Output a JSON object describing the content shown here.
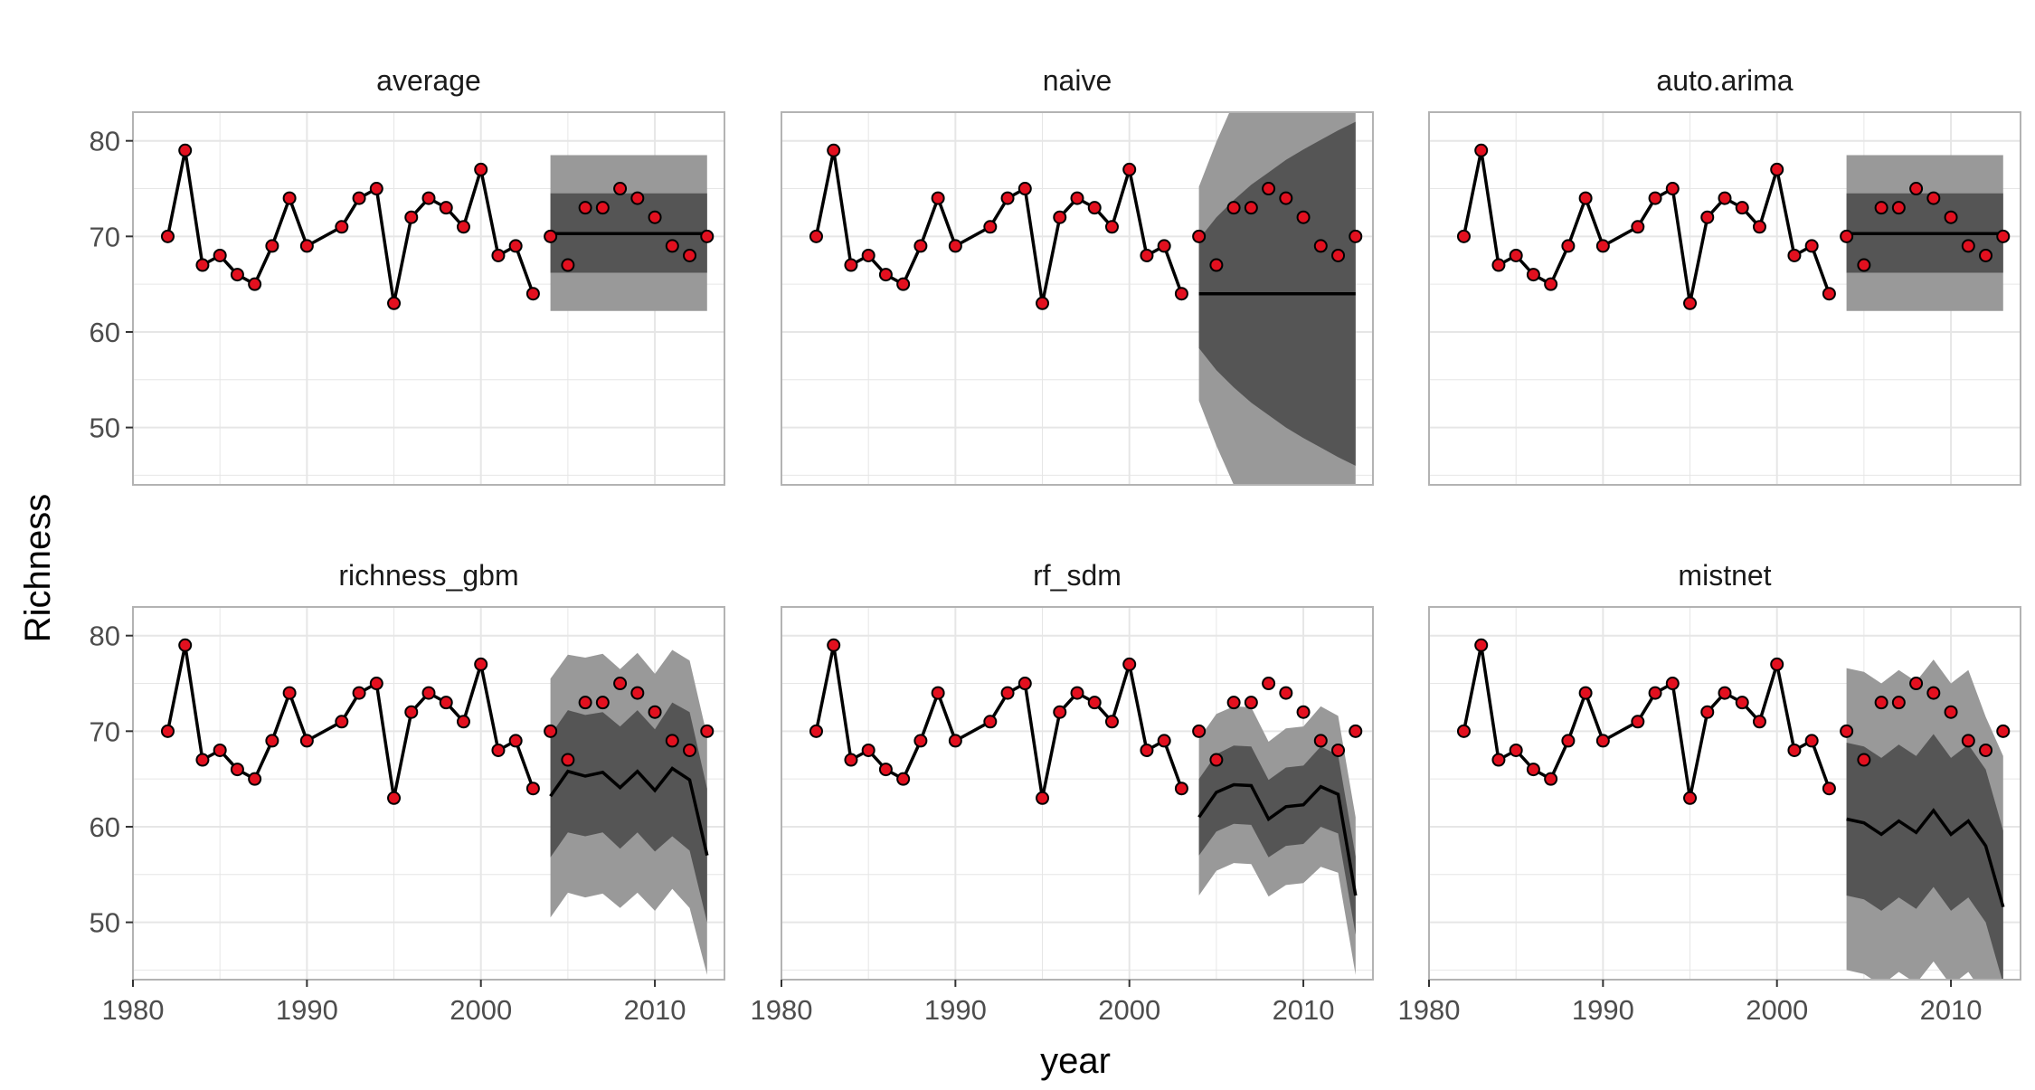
{
  "chart_data": {
    "type": "line",
    "xlabel": "year",
    "ylabel": "Richness",
    "xlim": [
      1980,
      2014
    ],
    "ylim": [
      44,
      83
    ],
    "x_ticks": [
      1980,
      1990,
      2000,
      2010
    ],
    "y_ticks": [
      50,
      60,
      70,
      80
    ],
    "grid": true,
    "layout": "2 rows x 3 columns facets",
    "colors": {
      "points": "#e3101f",
      "line": "#000000",
      "band_outer": "#999999",
      "band_inner": "#555555",
      "grid": "#e6e6e6",
      "panel_border": "#b3b3b3"
    },
    "observed": {
      "x": [
        1982,
        1983,
        1984,
        1985,
        1986,
        1987,
        1988,
        1989,
        1990,
        1992,
        1993,
        1994,
        1995,
        1996,
        1997,
        1998,
        1999,
        2000,
        2001,
        2002,
        2003,
        2004,
        2005,
        2006,
        2007,
        2008,
        2009,
        2010,
        2011,
        2012,
        2013
      ],
      "y": [
        70,
        79,
        67,
        68,
        66,
        65,
        69,
        74,
        69,
        71,
        74,
        75,
        63,
        72,
        74,
        73,
        71,
        77,
        68,
        69,
        64,
        70,
        67,
        73,
        73,
        75,
        74,
        72,
        69,
        68,
        70
      ]
    },
    "training_end_year": 2003,
    "forecast_x": [
      2004,
      2005,
      2006,
      2007,
      2008,
      2009,
      2010,
      2011,
      2012,
      2013
    ],
    "panels": [
      {
        "title": "average",
        "mean": [
          70.3,
          70.3,
          70.3,
          70.3,
          70.3,
          70.3,
          70.3,
          70.3,
          70.3,
          70.3
        ],
        "inner_lo": [
          66.2,
          66.2,
          66.2,
          66.2,
          66.2,
          66.2,
          66.2,
          66.2,
          66.2,
          66.2
        ],
        "inner_hi": [
          74.5,
          74.5,
          74.5,
          74.5,
          74.5,
          74.5,
          74.5,
          74.5,
          74.5,
          74.5
        ],
        "outer_lo": [
          62.2,
          62.2,
          62.2,
          62.2,
          62.2,
          62.2,
          62.2,
          62.2,
          62.2,
          62.2
        ],
        "outer_hi": [
          78.5,
          78.5,
          78.5,
          78.5,
          78.5,
          78.5,
          78.5,
          78.5,
          78.5,
          78.5
        ]
      },
      {
        "title": "naive",
        "mean": [
          64,
          64,
          64,
          64,
          64,
          64,
          64,
          64,
          64,
          64
        ],
        "inner_lo": [
          58.3,
          56.0,
          54.2,
          52.6,
          51.3,
          50.0,
          48.9,
          47.9,
          46.9,
          46.0
        ],
        "inner_hi": [
          69.7,
          72.0,
          73.8,
          75.4,
          76.7,
          78.0,
          79.1,
          80.1,
          81.1,
          82.0
        ],
        "outer_lo": [
          52.8,
          48.1,
          44,
          40.6,
          37.6,
          34.9,
          32.5,
          30.2,
          28.1,
          26.1
        ],
        "outer_hi": [
          75.2,
          79.9,
          84,
          87.4,
          90.4,
          93.1,
          95.5,
          97.8,
          99.9,
          101.9
        ]
      },
      {
        "title": "auto.arima",
        "mean": [
          70.3,
          70.3,
          70.3,
          70.3,
          70.3,
          70.3,
          70.3,
          70.3,
          70.3,
          70.3
        ],
        "inner_lo": [
          66.2,
          66.2,
          66.2,
          66.2,
          66.2,
          66.2,
          66.2,
          66.2,
          66.2,
          66.2
        ],
        "inner_hi": [
          74.5,
          74.5,
          74.5,
          74.5,
          74.5,
          74.5,
          74.5,
          74.5,
          74.5,
          74.5
        ],
        "outer_lo": [
          62.2,
          62.2,
          62.2,
          62.2,
          62.2,
          62.2,
          62.2,
          62.2,
          62.2,
          62.2
        ],
        "outer_hi": [
          78.5,
          78.5,
          78.5,
          78.5,
          78.5,
          78.5,
          78.5,
          78.5,
          78.5,
          78.5
        ]
      },
      {
        "title": "richness_gbm",
        "mean": [
          63.2,
          65.8,
          65.3,
          65.7,
          64.1,
          65.8,
          63.8,
          66.1,
          64.9,
          57.0
        ],
        "inner_lo": [
          56.8,
          59.4,
          59.0,
          59.4,
          57.7,
          59.4,
          57.4,
          59.0,
          57.5,
          50.0
        ],
        "inner_hi": [
          69.6,
          72.2,
          71.7,
          72.0,
          70.5,
          72.2,
          70.2,
          73.0,
          72.0,
          64.0
        ],
        "outer_lo": [
          50.5,
          53.1,
          52.6,
          53.0,
          51.5,
          53.1,
          51.2,
          53.5,
          51.5,
          44.5
        ],
        "outer_hi": [
          75.5,
          78.0,
          77.7,
          78.1,
          76.5,
          78.2,
          76.0,
          78.5,
          77.4,
          69.5
        ]
      },
      {
        "title": "rf_sdm",
        "mean": [
          61.0,
          63.6,
          64.4,
          64.3,
          60.8,
          62.1,
          62.3,
          64.2,
          63.4,
          52.8
        ],
        "inner_lo": [
          57.0,
          59.5,
          60.3,
          60.2,
          56.8,
          58.0,
          58.2,
          60.0,
          59.3,
          48.7
        ],
        "inner_hi": [
          65.0,
          67.6,
          68.5,
          68.4,
          64.9,
          66.2,
          66.4,
          68.4,
          67.5,
          56.9
        ],
        "outer_lo": [
          52.8,
          55.4,
          56.2,
          56.1,
          52.7,
          53.9,
          54.1,
          55.8,
          55.2,
          44.5
        ],
        "outer_hi": [
          69.2,
          71.8,
          72.6,
          72.5,
          68.9,
          70.3,
          70.5,
          72.6,
          71.6,
          61.0
        ]
      },
      {
        "title": "mistnet",
        "mean": [
          60.8,
          60.4,
          59.2,
          60.6,
          59.4,
          61.7,
          59.2,
          60.6,
          58.0,
          51.6
        ],
        "inner_lo": [
          52.8,
          52.4,
          51.2,
          52.6,
          51.4,
          53.7,
          51.2,
          52.6,
          50.0,
          43.6
        ],
        "inner_hi": [
          68.8,
          68.4,
          67.2,
          68.6,
          67.4,
          69.7,
          67.2,
          68.6,
          66.0,
          59.6
        ],
        "outer_lo": [
          45.0,
          44.6,
          43.4,
          44.8,
          43.6,
          45.9,
          43.4,
          44.8,
          42.2,
          35.8
        ],
        "outer_hi": [
          76.6,
          76.2,
          75.0,
          76.4,
          75.2,
          77.5,
          75.0,
          76.4,
          71.5,
          67.4
        ]
      }
    ]
  }
}
